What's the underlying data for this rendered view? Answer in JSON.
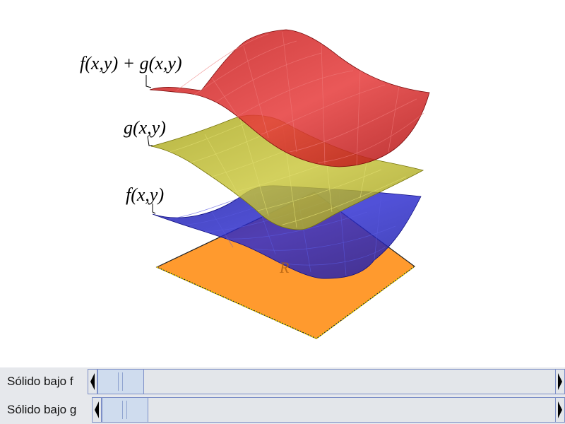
{
  "diagram": {
    "labels": {
      "f_plus_g": "f(x,y) + g(x,y)",
      "g": "g(x,y)",
      "f": "f(x,y)",
      "region": "R"
    },
    "colors": {
      "red_surface": "#cc1f1f",
      "yellow_surface": "#b8b520",
      "blue_surface": "#1c1cc0",
      "region": "#ff9a2e"
    }
  },
  "controls": {
    "slider_f": {
      "label": "Sólido bajo f",
      "value": 0.05
    },
    "slider_g": {
      "label": "Sólido bajo g",
      "value": 0.05
    }
  }
}
